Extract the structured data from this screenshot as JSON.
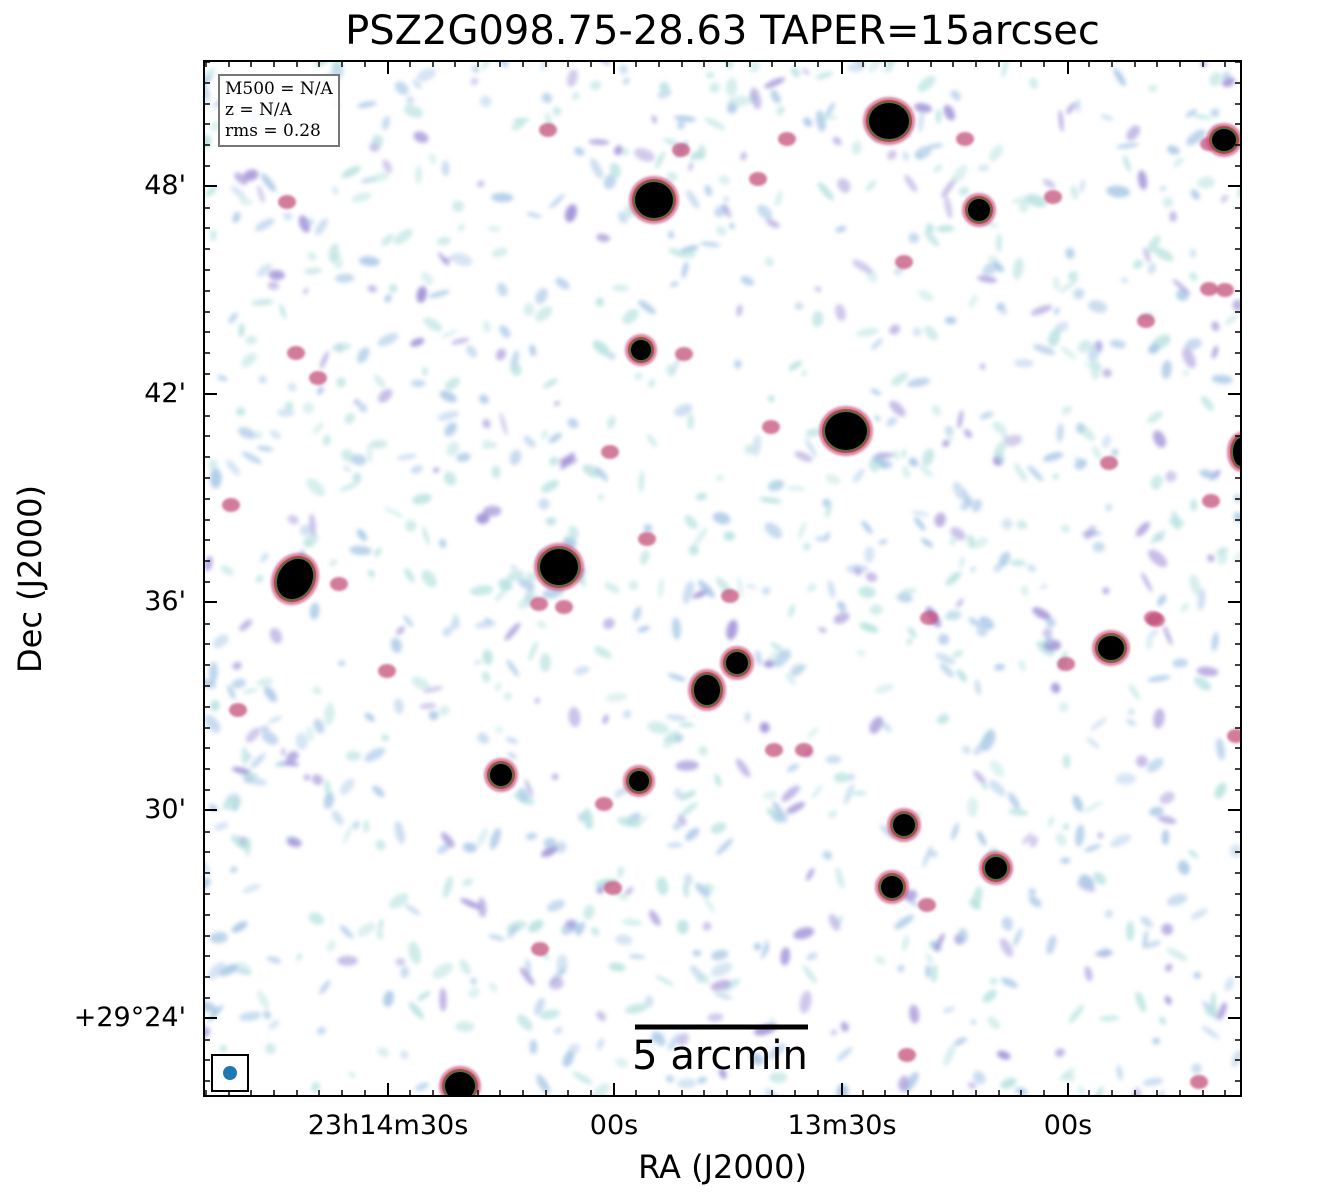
{
  "title": "PSZ2G098.75-28.63 TAPER=15arcsec",
  "xlabel": "RA (J2000)",
  "ylabel": "Dec (J2000)",
  "yticks": [
    "48'",
    "42'",
    "36'",
    "30'",
    "+29°24'"
  ],
  "xticks": [
    "23h14m30s",
    "00s",
    "13m30s",
    "00s"
  ],
  "info": {
    "mass": "M500 = N/A",
    "redshift": "z = N/A",
    "rms": "rms = 0.28"
  },
  "scalebar": "5 arcmin",
  "colors": {
    "source_core": "#000000",
    "source_ring_green": "#3d7a3d",
    "source_ring_red": "#b03a3a",
    "emission_pink": "#c44f7a",
    "noise_purple": "#9f8fd6",
    "noise_lightblue": "#a9c8e6",
    "noise_cyan": "#b7e2df",
    "beam": "#1f77b4"
  }
}
